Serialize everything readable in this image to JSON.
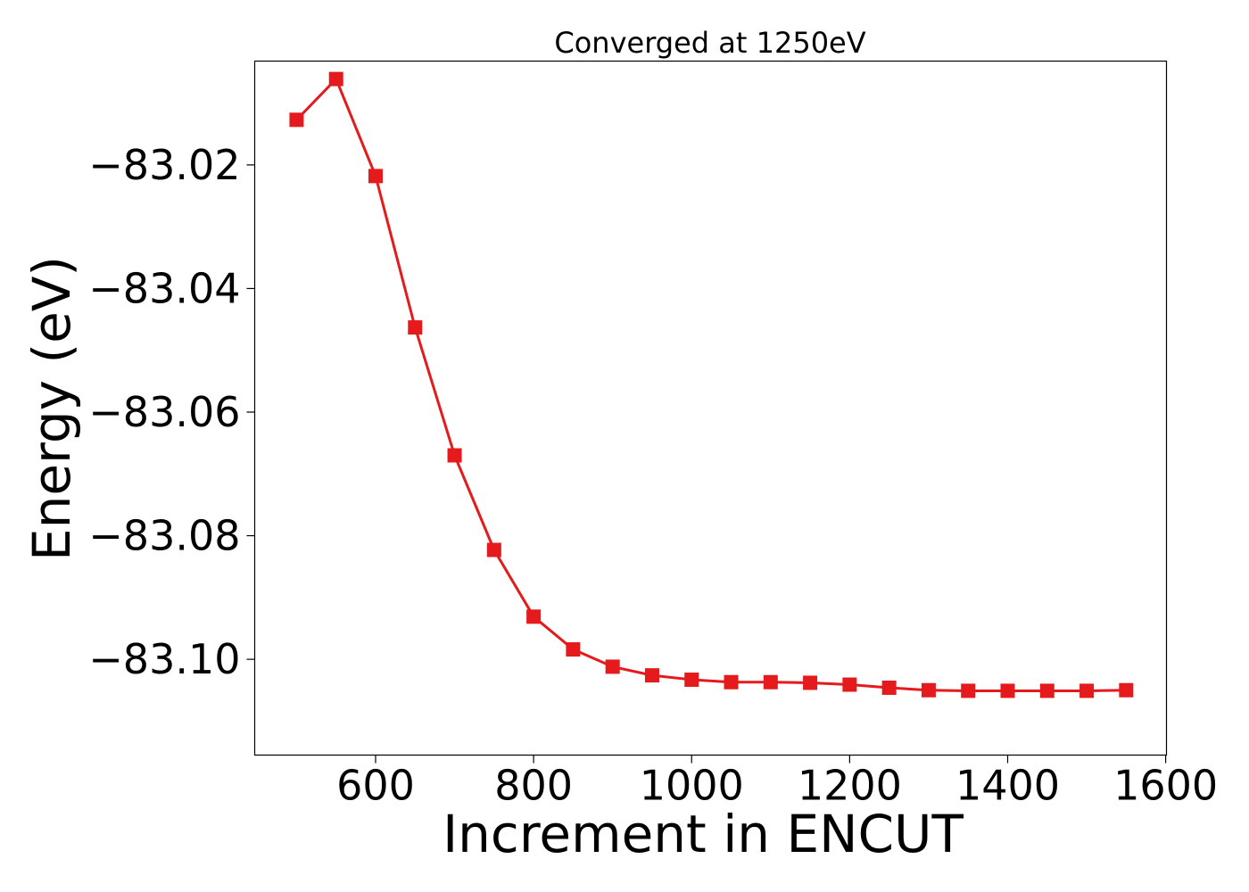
{
  "chart_data": {
    "type": "line",
    "title": "Converged at 1250eV",
    "xlabel": "Increment in ENCUT",
    "ylabel": "Energy (eV)",
    "xlim": [
      447,
      1601
    ],
    "ylim": [
      -83.1155,
      -83.0032
    ],
    "x_ticks": [
      600,
      800,
      1000,
      1200,
      1400,
      1600
    ],
    "x_tick_labels": [
      "600",
      "800",
      "1000",
      "1200",
      "1400",
      "1600"
    ],
    "y_ticks": [
      -83.02,
      -83.04,
      -83.06,
      -83.08,
      -83.1
    ],
    "y_tick_labels": [
      "−83.02",
      "−83.04",
      "−83.06",
      "−83.08",
      "−83.10"
    ],
    "grid": false,
    "series": [
      {
        "color": "#e41a1c",
        "marker": "square",
        "x": [
          500,
          550,
          600,
          650,
          700,
          750,
          800,
          850,
          900,
          950,
          1000,
          1050,
          1100,
          1150,
          1200,
          1250,
          1300,
          1350,
          1400,
          1450,
          1500,
          1550
        ],
        "y": [
          -83.0127,
          -83.0061,
          -83.0218,
          -83.0463,
          -83.067,
          -83.0823,
          -83.0931,
          -83.0984,
          -83.1012,
          -83.1026,
          -83.1033,
          -83.1037,
          -83.1037,
          -83.1038,
          -83.1041,
          -83.1046,
          -83.105,
          -83.1051,
          -83.1051,
          -83.1051,
          -83.1051,
          -83.105
        ]
      }
    ]
  }
}
